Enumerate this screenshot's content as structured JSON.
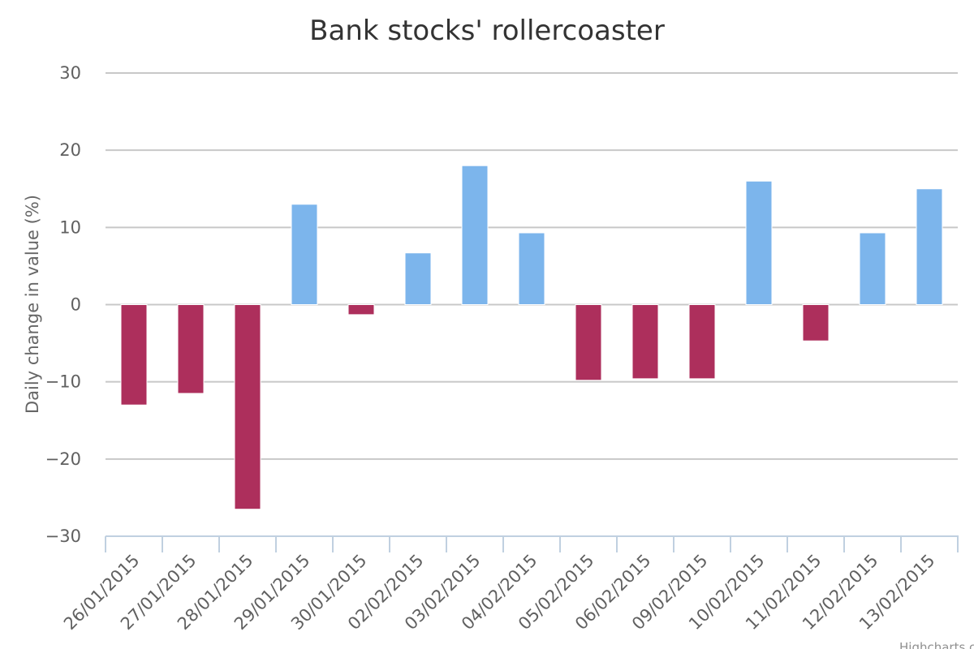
{
  "chart_data": {
    "type": "bar",
    "title": "Bank stocks' rollercoaster",
    "xlabel": "",
    "ylabel": "Daily change in value (%)",
    "ylim": [
      -30,
      30
    ],
    "yticks": [
      30,
      20,
      10,
      0,
      -10,
      -20,
      -30
    ],
    "ytick_labels": [
      "30",
      "20",
      "10",
      "0",
      "−10",
      "−20",
      "−30"
    ],
    "grid": true,
    "legend": "none",
    "categories": [
      "26/01/2015",
      "27/01/2015",
      "28/01/2015",
      "29/01/2015",
      "30/01/2015",
      "02/02/2015",
      "03/02/2015",
      "04/02/2015",
      "05/02/2015",
      "06/02/2015",
      "09/02/2015",
      "10/02/2015",
      "11/02/2015",
      "12/02/2015",
      "13/02/2015"
    ],
    "values": [
      -13,
      -11.5,
      -26.5,
      13,
      -1.3,
      6.7,
      18,
      9.3,
      -9.8,
      -9.6,
      -9.6,
      16,
      -4.7,
      9.3,
      15
    ],
    "positive_color": "#7cb5ec",
    "negative_color": "#ad2f5c",
    "credit": "Highcharts.com"
  }
}
